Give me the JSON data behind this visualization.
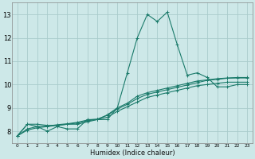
{
  "xlabel": "Humidex (Indice chaleur)",
  "bg_color": "#cde8e8",
  "grid_color": "#aacccc",
  "line_color": "#1a7a6a",
  "xlim": [
    -0.5,
    23.5
  ],
  "ylim": [
    7.5,
    13.5
  ],
  "yticks": [
    8,
    9,
    10,
    11,
    12,
    13
  ],
  "xticks": [
    0,
    1,
    2,
    3,
    4,
    5,
    6,
    7,
    8,
    9,
    10,
    11,
    12,
    13,
    14,
    15,
    16,
    17,
    18,
    19,
    20,
    21,
    22,
    23
  ],
  "xtick_labels": [
    "0",
    "1",
    "2",
    "3",
    "4",
    "5",
    "6",
    "7",
    "8",
    "9",
    "10",
    "11",
    "12",
    "13",
    "14",
    "15",
    "16",
    "17",
    "18",
    "19",
    "20",
    "21",
    "22",
    "23"
  ],
  "series": [
    [
      7.8,
      8.3,
      8.2,
      8.0,
      8.2,
      8.1,
      8.1,
      8.5,
      8.5,
      8.5,
      9.0,
      10.5,
      12.0,
      13.0,
      12.7,
      13.1,
      11.7,
      10.4,
      10.5,
      10.3,
      9.9,
      9.9,
      10.0,
      10.0
    ],
    [
      7.8,
      8.3,
      8.3,
      8.25,
      8.25,
      8.3,
      8.3,
      8.4,
      8.5,
      8.6,
      8.85,
      9.05,
      9.25,
      9.45,
      9.55,
      9.65,
      9.75,
      9.85,
      9.95,
      10.0,
      10.05,
      10.1,
      10.1,
      10.1
    ],
    [
      7.8,
      8.05,
      8.15,
      8.2,
      8.25,
      8.3,
      8.35,
      8.45,
      8.5,
      8.7,
      9.0,
      9.2,
      9.5,
      9.65,
      9.75,
      9.85,
      9.95,
      10.05,
      10.15,
      10.2,
      10.25,
      10.28,
      10.3,
      10.3
    ],
    [
      7.8,
      8.1,
      8.2,
      8.22,
      8.28,
      8.32,
      8.38,
      8.48,
      8.52,
      8.68,
      8.95,
      9.15,
      9.4,
      9.58,
      9.68,
      9.78,
      9.88,
      9.98,
      10.08,
      10.18,
      10.22,
      10.27,
      10.28,
      10.28
    ]
  ]
}
